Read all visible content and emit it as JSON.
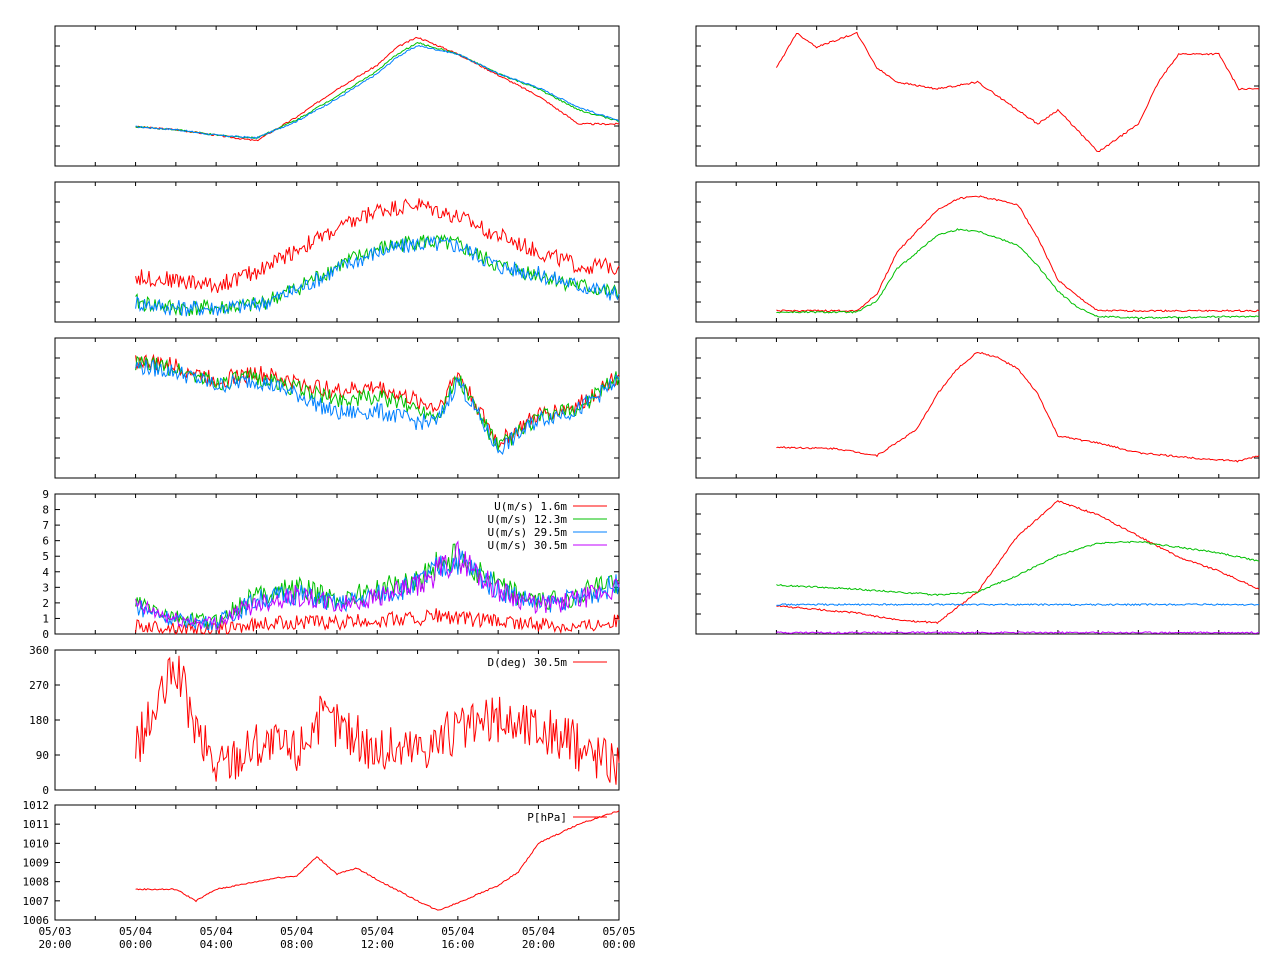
{
  "chart_data": [
    {
      "id": "temp_profile",
      "type": "line",
      "panel": "left-1",
      "x": [
        "05/04 00:00",
        "05/04 02:00",
        "05/04 04:00",
        "05/04 06:00",
        "05/04 08:00",
        "05/04 10:00",
        "05/04 12:00",
        "05/04 13:00",
        "05/04 14:00",
        "05/04 16:00",
        "05/04 18:00",
        "05/04 20:00",
        "05/04 22:00",
        "05/05 00:00"
      ],
      "series": [
        {
          "color": "#ff0000",
          "values": [
            0.28,
            0.26,
            0.22,
            0.18,
            0.35,
            0.55,
            0.72,
            0.85,
            0.92,
            0.8,
            0.65,
            0.5,
            0.3,
            0.3
          ]
        },
        {
          "color": "#00c000",
          "values": [
            0.28,
            0.26,
            0.22,
            0.2,
            0.33,
            0.5,
            0.68,
            0.8,
            0.88,
            0.8,
            0.66,
            0.55,
            0.4,
            0.32
          ]
        },
        {
          "color": "#0080ff",
          "values": [
            0.28,
            0.26,
            0.22,
            0.2,
            0.32,
            0.48,
            0.66,
            0.78,
            0.86,
            0.8,
            0.66,
            0.56,
            0.42,
            0.32
          ]
        }
      ]
    },
    {
      "id": "humidity_profile",
      "type": "line",
      "panel": "left-2",
      "x": [
        "05/04 00:00",
        "05/04 02:00",
        "05/04 04:00",
        "05/04 06:00",
        "05/04 08:00",
        "05/04 10:00",
        "05/04 12:00",
        "05/04 14:00",
        "05/04 16:00",
        "05/04 18:00",
        "05/04 20:00",
        "05/04 22:00",
        "05/05 00:00"
      ],
      "series": [
        {
          "color": "#ff0000",
          "values": [
            0.32,
            0.3,
            0.26,
            0.36,
            0.52,
            0.66,
            0.8,
            0.84,
            0.75,
            0.62,
            0.5,
            0.4,
            0.4
          ]
        },
        {
          "color": "#00c000",
          "values": [
            0.14,
            0.1,
            0.1,
            0.12,
            0.24,
            0.4,
            0.52,
            0.58,
            0.55,
            0.4,
            0.34,
            0.26,
            0.2
          ]
        },
        {
          "color": "#0080ff",
          "values": [
            0.14,
            0.1,
            0.1,
            0.12,
            0.23,
            0.38,
            0.5,
            0.56,
            0.55,
            0.4,
            0.34,
            0.26,
            0.2
          ]
        }
      ]
    },
    {
      "id": "wind_var_profile",
      "type": "line",
      "panel": "left-3",
      "x": [
        "05/04 00:00",
        "05/04 02:00",
        "05/04 04:00",
        "05/04 06:00",
        "05/04 08:00",
        "05/04 10:00",
        "05/04 12:00",
        "05/04 14:00",
        "05/04 15:00",
        "05/04 16:00",
        "05/04 18:00",
        "05/04 20:00",
        "05/04 22:00",
        "05/05 00:00"
      ],
      "series": [
        {
          "color": "#ff0000",
          "values": [
            0.84,
            0.8,
            0.7,
            0.75,
            0.68,
            0.62,
            0.65,
            0.55,
            0.5,
            0.75,
            0.25,
            0.45,
            0.52,
            0.74
          ]
        },
        {
          "color": "#00c000",
          "values": [
            0.82,
            0.78,
            0.68,
            0.72,
            0.64,
            0.56,
            0.58,
            0.5,
            0.45,
            0.72,
            0.22,
            0.43,
            0.5,
            0.72
          ]
        },
        {
          "color": "#0080ff",
          "values": [
            0.8,
            0.76,
            0.66,
            0.7,
            0.6,
            0.46,
            0.48,
            0.4,
            0.4,
            0.7,
            0.2,
            0.42,
            0.49,
            0.7
          ]
        }
      ]
    },
    {
      "id": "wind_speed",
      "type": "line",
      "panel": "left-4",
      "ylim": [
        0,
        9
      ],
      "yticks": [
        "0",
        "1",
        "2",
        "3",
        "4",
        "5",
        "6",
        "7",
        "8",
        "9"
      ],
      "legend": "top-right",
      "x": [
        "05/04 00:00",
        "05/04 02:00",
        "05/04 04:00",
        "05/04 06:00",
        "05/04 08:00",
        "05/04 10:00",
        "05/04 12:00",
        "05/04 14:00",
        "05/04 15:00",
        "05/04 16:00",
        "05/04 18:00",
        "05/04 20:00",
        "05/04 22:00",
        "05/05 00:00"
      ],
      "series": [
        {
          "name": "U(m/s)  1.6m",
          "color": "#ff0000",
          "values": [
            0.5,
            0.4,
            0.3,
            0.6,
            0.8,
            0.7,
            0.9,
            1.0,
            1.2,
            1.0,
            0.8,
            0.6,
            0.5,
            0.9
          ]
        },
        {
          "name": "U(m/s) 12.3m",
          "color": "#00c000",
          "values": [
            2.0,
            1.0,
            0.8,
            2.5,
            3.0,
            2.2,
            2.8,
            3.5,
            4.5,
            5.0,
            3.0,
            2.0,
            2.5,
            3.5
          ]
        },
        {
          "name": "U(m/s) 29.5m",
          "color": "#0080ff",
          "values": [
            1.8,
            0.9,
            0.7,
            2.2,
            2.6,
            1.9,
            2.5,
            3.2,
            4.2,
            4.8,
            2.9,
            1.9,
            2.3,
            3.2
          ]
        },
        {
          "name": "U(m/s) 30.5m",
          "color": "#c000ff",
          "values": [
            1.8,
            0.9,
            0.7,
            2.0,
            2.5,
            1.8,
            2.4,
            3.0,
            4.0,
            5.0,
            2.8,
            1.8,
            2.2,
            3.0
          ]
        }
      ]
    },
    {
      "id": "wind_dir",
      "type": "line",
      "panel": "left-5",
      "ylim": [
        0,
        360
      ],
      "yticks": [
        "0",
        "90",
        "180",
        "270",
        "360"
      ],
      "legend": "top-right",
      "x": [
        "05/04 00:00",
        "05/04 01:00",
        "05/04 02:00",
        "05/04 03:00",
        "05/04 04:00",
        "05/04 06:00",
        "05/04 08:00",
        "05/04 09:00",
        "05/04 10:00",
        "05/04 12:00",
        "05/04 14:00",
        "05/04 16:00",
        "05/04 18:00",
        "05/04 20:00",
        "05/04 22:00",
        "05/05 00:00"
      ],
      "series": [
        {
          "name": "D(deg)  30.5m",
          "color": "#ff0000",
          "values": [
            110,
            200,
            320,
            150,
            60,
            120,
            100,
            180,
            170,
            100,
            110,
            150,
            180,
            160,
            110,
            70
          ]
        }
      ]
    },
    {
      "id": "pressure",
      "type": "line",
      "panel": "left-6",
      "ylim": [
        1006,
        1012
      ],
      "yticks": [
        "1006",
        "1007",
        "1008",
        "1009",
        "1010",
        "1011",
        "1012"
      ],
      "legend": "top-right",
      "xticks": [
        [
          "05/03",
          "20:00"
        ],
        [
          "05/04",
          "00:00"
        ],
        [
          "05/04",
          "04:00"
        ],
        [
          "05/04",
          "08:00"
        ],
        [
          "05/04",
          "12:00"
        ],
        [
          "05/04",
          "16:00"
        ],
        [
          "05/04",
          "20:00"
        ],
        [
          "05/05",
          "00:00"
        ]
      ],
      "x": [
        "05/04 00:00",
        "05/04 02:00",
        "05/04 03:00",
        "05/04 04:00",
        "05/04 06:00",
        "05/04 07:00",
        "05/04 08:00",
        "05/04 09:00",
        "05/04 10:00",
        "05/04 11:00",
        "05/04 12:00",
        "05/04 14:00",
        "05/04 15:00",
        "05/04 16:00",
        "05/04 18:00",
        "05/04 19:00",
        "05/04 20:00",
        "05/04 22:00",
        "05/05 00:00"
      ],
      "series": [
        {
          "name": "P[hPa]",
          "color": "#ff0000",
          "values": [
            1007.6,
            1007.6,
            1007.0,
            1007.6,
            1008.0,
            1008.2,
            1008.3,
            1009.3,
            1008.4,
            1008.7,
            1008.1,
            1007.0,
            1006.5,
            1006.9,
            1007.8,
            1008.5,
            1010.0,
            1011.0,
            1011.7
          ]
        }
      ]
    },
    {
      "id": "right_step",
      "type": "line",
      "panel": "right-1",
      "x": [
        "05/04 00:00",
        "05/04 01:00",
        "05/04 02:00",
        "05/04 04:00",
        "05/04 05:00",
        "05/04 06:00",
        "05/04 08:00",
        "05/04 10:00",
        "05/04 12:00",
        "05/04 13:00",
        "05/04 14:00",
        "05/04 16:00",
        "05/04 18:00",
        "05/04 19:00",
        "05/04 20:00",
        "05/04 22:00",
        "05/04 23:00",
        "05/05 00:00"
      ],
      "series": [
        {
          "color": "#ff0000",
          "values": [
            0.7,
            0.95,
            0.85,
            0.95,
            0.7,
            0.6,
            0.55,
            0.6,
            0.4,
            0.3,
            0.4,
            0.1,
            0.3,
            0.6,
            0.8,
            0.8,
            0.55,
            0.55
          ]
        }
      ]
    },
    {
      "id": "right_radiation",
      "type": "line",
      "panel": "right-2",
      "x": [
        "05/04 00:00",
        "05/04 04:00",
        "05/04 05:00",
        "05/04 06:00",
        "05/04 08:00",
        "05/04 09:00",
        "05/04 10:00",
        "05/04 12:00",
        "05/04 13:00",
        "05/04 14:00",
        "05/04 15:00",
        "05/04 16:00",
        "05/04 18:00",
        "05/05 00:00"
      ],
      "series": [
        {
          "color": "#ff0000",
          "values": [
            0.08,
            0.08,
            0.2,
            0.5,
            0.8,
            0.88,
            0.9,
            0.84,
            0.6,
            0.3,
            0.18,
            0.08,
            0.08,
            0.08
          ]
        },
        {
          "color": "#00c000",
          "values": [
            0.07,
            0.07,
            0.15,
            0.38,
            0.62,
            0.66,
            0.65,
            0.55,
            0.4,
            0.22,
            0.1,
            0.04,
            0.03,
            0.04
          ]
        }
      ]
    },
    {
      "id": "right_temp_smooth",
      "type": "line",
      "panel": "right-3",
      "x": [
        "05/04 00:00",
        "05/04 03:00",
        "05/04 05:00",
        "05/04 07:00",
        "05/04 08:00",
        "05/04 09:00",
        "05/04 10:00",
        "05/04 11:00",
        "05/04 12:00",
        "05/04 13:00",
        "05/04 14:00",
        "05/04 16:00",
        "05/04 18:00",
        "05/04 21:00",
        "05/04 23:00",
        "05/05 00:00"
      ],
      "series": [
        {
          "color": "#ff0000",
          "values": [
            0.22,
            0.21,
            0.16,
            0.35,
            0.6,
            0.78,
            0.9,
            0.86,
            0.78,
            0.6,
            0.3,
            0.25,
            0.18,
            0.14,
            0.12,
            0.16
          ]
        }
      ]
    },
    {
      "id": "right_profiles",
      "type": "line",
      "panel": "right-4",
      "x": [
        "05/04 00:00",
        "05/04 04:00",
        "05/04 06:00",
        "05/04 08:00",
        "05/04 10:00",
        "05/04 12:00",
        "05/04 14:00",
        "05/04 16:00",
        "05/04 18:00",
        "05/04 20:00",
        "05/04 22:00",
        "05/05 00:00"
      ],
      "series": [
        {
          "color": "#ff0000",
          "values": [
            0.2,
            0.15,
            0.1,
            0.08,
            0.3,
            0.7,
            0.95,
            0.85,
            0.7,
            0.55,
            0.45,
            0.32
          ]
        },
        {
          "color": "#00c000",
          "values": [
            0.35,
            0.32,
            0.3,
            0.28,
            0.3,
            0.42,
            0.56,
            0.65,
            0.66,
            0.62,
            0.58,
            0.52
          ]
        },
        {
          "color": "#0080ff",
          "values": [
            0.21,
            0.21,
            0.21,
            0.21,
            0.21,
            0.21,
            0.21,
            0.21,
            0.21,
            0.21,
            0.21,
            0.21
          ]
        },
        {
          "color": "#c000ff",
          "values": [
            0.01,
            0.01,
            0.01,
            0.01,
            0.01,
            0.01,
            0.01,
            0.01,
            0.01,
            0.01,
            0.01,
            0.01
          ]
        }
      ]
    }
  ]
}
